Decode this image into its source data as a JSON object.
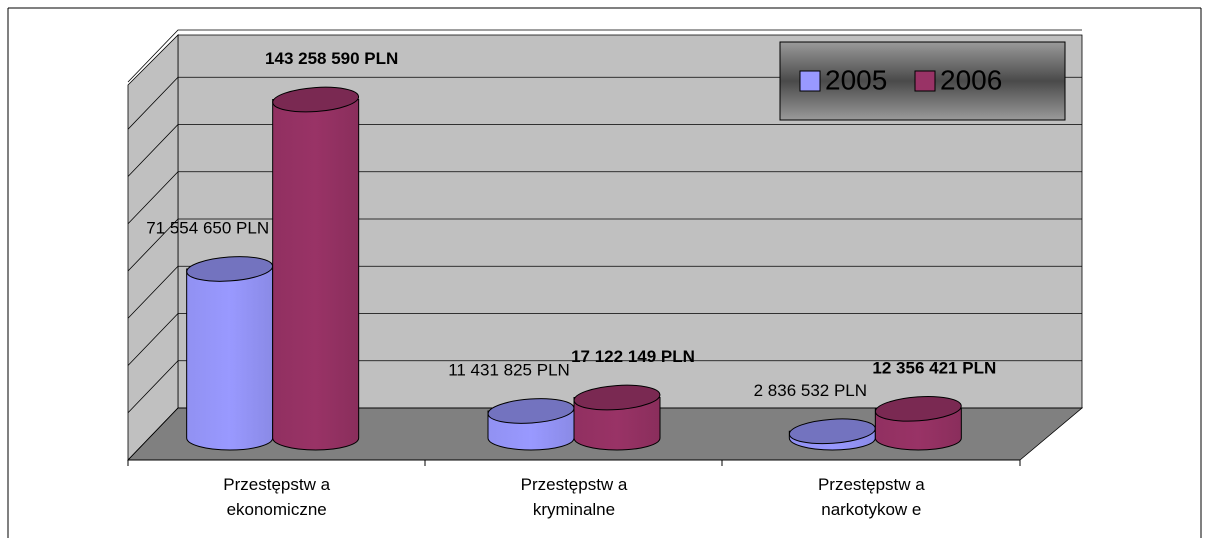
{
  "chart_data": {
    "type": "bar3d",
    "categories": [
      "Przestępstw a ekonomiczne",
      "Przestępstw a kryminalne",
      "Przestępstw a narkotykow e"
    ],
    "series": [
      {
        "name": "2005",
        "color": "#9999ff",
        "values": [
          71554650,
          11431825,
          2836532
        ],
        "value_labels": [
          "71 554 650 PLN",
          "11 431 825 PLN",
          "2 836 532 PLN"
        ]
      },
      {
        "name": "2006",
        "color": "#993366",
        "values": [
          143258590,
          17122149,
          12356421
        ],
        "value_labels": [
          "143 258 590 PLN",
          "17 122 149 PLN",
          "12 356 421 PLN"
        ]
      }
    ],
    "ylim": [
      0,
      160000000
    ],
    "yticks": [
      0,
      20000000,
      40000000,
      60000000,
      80000000,
      100000000,
      120000000,
      140000000,
      160000000
    ],
    "grid": true,
    "legend": "top-right"
  }
}
